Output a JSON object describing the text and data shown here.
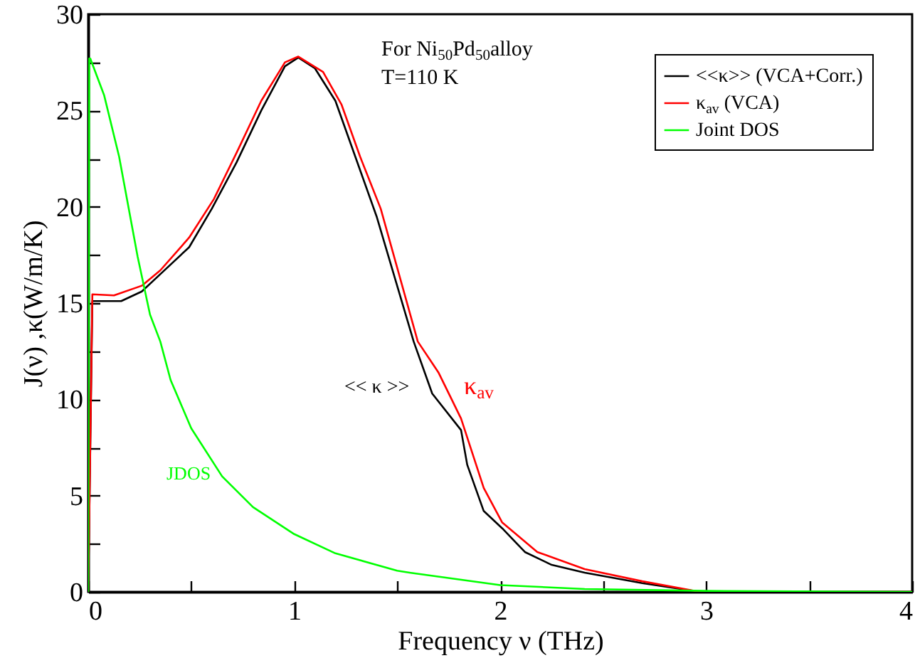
{
  "chart_data": {
    "type": "line",
    "xlabel": "Frequency  ν (THz)",
    "ylabel": "J(ν) ,κ(W/m/K)",
    "xlim": [
      0,
      4
    ],
    "ylim": [
      0,
      30
    ],
    "xticks": [
      0,
      {
        "value": 0.5,
        "label": null
      },
      1,
      {
        "value": 1.5,
        "label": null
      },
      2,
      {
        "value": 2.5,
        "label": null
      },
      3,
      {
        "value": 3.5,
        "label": null
      },
      4
    ],
    "yticks": [
      0,
      {
        "value": 2.5,
        "label": null
      },
      5,
      {
        "value": 7.5,
        "label": null
      },
      10,
      {
        "value": 12.5,
        "label": null
      },
      15,
      {
        "value": 17.5,
        "label": null
      },
      20,
      {
        "value": 22.5,
        "label": null
      },
      25,
      {
        "value": 27.5,
        "label": null
      },
      30
    ],
    "legend": "top right",
    "grid": false,
    "line_style": "solid",
    "marker": "none",
    "annotations": [
      "<< κ >>",
      "κ$_{av}$",
      "JDOS",
      "For Ni$_{50}$Pd$_{50}$alloy",
      "T=110 K"
    ],
    "series": [
      {
        "name": "<<κ>> (VCA+Corr.)",
        "color": "#000000",
        "x": [
          0,
          0.02,
          0.16,
          0.26,
          0.35,
          0.49,
          0.6,
          0.72,
          0.84,
          0.955,
          1.02,
          1.1,
          1.2,
          1.3,
          1.4,
          1.58,
          1.67,
          1.81,
          1.84,
          1.92,
          2.01,
          2.12,
          2.25,
          2.41,
          2.69,
          2.97,
          3.5,
          4
        ],
        "values": [
          0,
          15.1,
          15.1,
          15.6,
          16.5,
          17.9,
          19.9,
          22.3,
          25.0,
          27.3,
          27.75,
          27.2,
          25.5,
          22.5,
          19.5,
          13.0,
          10.3,
          8.4,
          6.6,
          4.2,
          3.3,
          2.07,
          1.4,
          1.0,
          0.45,
          0,
          0,
          0
        ]
      },
      {
        "name": "κ$_{av}$   (VCA)",
        "color": "#ff0000",
        "x": [
          0,
          0.02,
          0.125,
          0.26,
          0.35,
          0.49,
          0.61,
          0.72,
          0.84,
          0.955,
          1.02,
          1.14,
          1.23,
          1.32,
          1.42,
          1.6,
          1.7,
          1.81,
          1.92,
          2.01,
          2.18,
          2.41,
          2.69,
          2.97,
          3.5,
          4
        ],
        "values": [
          0,
          15.45,
          15.4,
          15.9,
          16.7,
          18.4,
          20.4,
          22.8,
          25.5,
          27.5,
          27.8,
          27.0,
          25.3,
          22.6,
          19.9,
          13.0,
          11.4,
          9.0,
          5.4,
          3.6,
          2.07,
          1.18,
          0.55,
          0,
          0,
          0
        ]
      },
      {
        "name": "Joint DOS",
        "color": "#00ff00",
        "x": [
          0,
          0.005,
          0.01,
          0.077,
          0.15,
          0.24,
          0.3,
          0.35,
          0.4,
          0.5,
          0.65,
          0.8,
          1.0,
          1.2,
          1.5,
          1.56,
          2.0,
          2.41,
          3.0,
          4
        ],
        "values": [
          0,
          27.7,
          27.7,
          25.8,
          22.6,
          17.4,
          14.4,
          13.0,
          11.0,
          8.5,
          6.0,
          4.4,
          3.0,
          2.0,
          1.1,
          1.0,
          0.35,
          0.15,
          0.05,
          0
        ]
      }
    ]
  }
}
